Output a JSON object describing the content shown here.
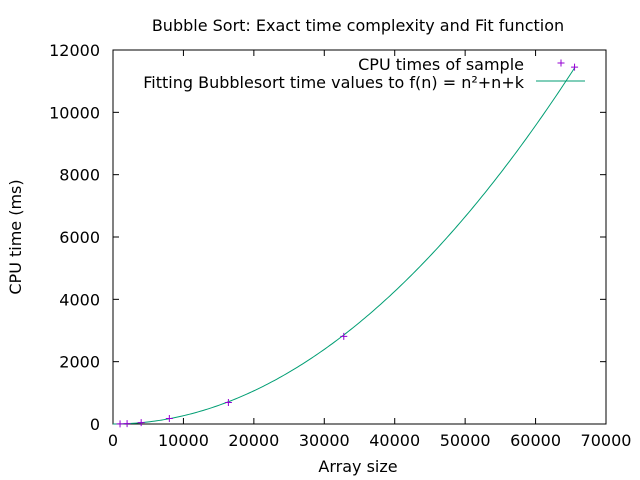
{
  "chart_data": {
    "type": "scatter",
    "title": "Bubble Sort: Exact time complexity and Fit function",
    "xlabel": "Array size",
    "ylabel": "CPU time (ms)",
    "xlim": [
      0,
      70000
    ],
    "ylim": [
      0,
      12000
    ],
    "x_ticks": [
      "0",
      "10000",
      "20000",
      "30000",
      "40000",
      "50000",
      "60000",
      "70000"
    ],
    "y_ticks": [
      "0",
      "2000",
      "4000",
      "6000",
      "8000",
      "10000",
      "12000"
    ],
    "grid": false,
    "legend_position": "top-right",
    "colors": {
      "samples": "#9400d3",
      "fit": "#009e73"
    },
    "series": [
      {
        "name": "CPU times of sample",
        "kind": "points",
        "marker": "plus",
        "x": [
          1000,
          2000,
          4000,
          8000,
          16384,
          32768,
          65536
        ],
        "y": [
          3,
          12,
          45,
          175,
          690,
          2810,
          11450
        ]
      },
      {
        "name": "Fitting Bubblesort time values to f(n) = n²+n+k",
        "kind": "line",
        "coefficients": {
          "a": 2.66e-06,
          "b": 0.0,
          "c": 0.0
        },
        "domain": [
          0,
          65536
        ]
      }
    ]
  }
}
